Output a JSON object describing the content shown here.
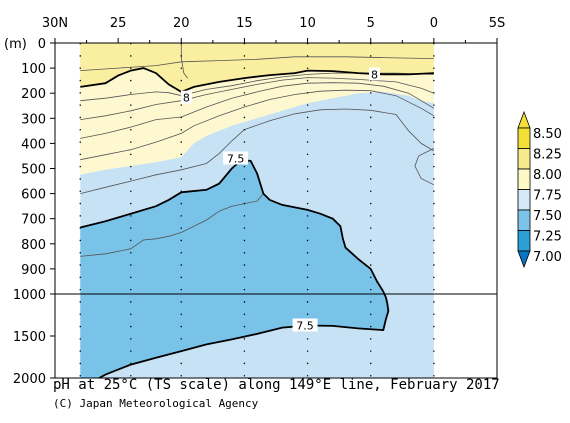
{
  "chart_data": {
    "type": "contour",
    "title": "pH at 25°C (TS scale) along 149°E line, February 2017",
    "credit": "(C) Japan Meteorological Agency",
    "xlabel": "",
    "ylabel": "(m)",
    "x_ticks": [
      "30N",
      "25",
      "20",
      "15",
      "10",
      "5",
      "0",
      "5S"
    ],
    "x_range": [
      30,
      -5
    ],
    "data_extent": [
      28,
      0
    ],
    "y_ticks_upper": [
      0,
      100,
      200,
      300,
      400,
      500,
      600,
      700,
      800,
      900,
      1000
    ],
    "y_ticks_lower": [
      1500,
      2000
    ],
    "y_range": [
      0,
      2000
    ],
    "y_break": 1000,
    "station_lats": [
      28,
      24,
      20,
      15,
      10,
      5,
      0
    ],
    "colorbar": {
      "levels": [
        "8.50",
        "8.25",
        "8.00",
        "7.75",
        "7.50",
        "7.25",
        "7.00"
      ],
      "fills": [
        "#f3df35",
        "#f6ea8a",
        "#fdf9c6",
        "#d3e9f7",
        "#7cc3e8",
        "#2c9fd4",
        "#0a74c4"
      ]
    },
    "colors": {
      "band_8_00_8_25": "#faeea0",
      "band_7_75_8_00": "#fdf8cf",
      "band_7_50_7_75": "#c7e2f5",
      "band_7_25_7_50": "#79c2e8"
    },
    "bold_contours": [
      "8",
      "7.5"
    ],
    "contour_labels": [
      {
        "text": "8",
        "lat": 19.6,
        "depth": 218
      },
      {
        "text": "8",
        "lat": 4.7,
        "depth": 125
      },
      {
        "text": "7.5",
        "lat": 15.7,
        "depth": 460
      },
      {
        "text": "7.5",
        "lat": 10.2,
        "depth": 1375
      }
    ],
    "regions": {
      "ph_8_00": [
        [
          28,
          175
        ],
        [
          26,
          160
        ],
        [
          25,
          130
        ],
        [
          24,
          110
        ],
        [
          23,
          100
        ],
        [
          22,
          120
        ],
        [
          21,
          165
        ],
        [
          20,
          195
        ],
        [
          19,
          175
        ],
        [
          17,
          155
        ],
        [
          15,
          140
        ],
        [
          13,
          128
        ],
        [
          11,
          120
        ],
        [
          10,
          110
        ],
        [
          8,
          112
        ],
        [
          6,
          120
        ],
        [
          4,
          125
        ],
        [
          2,
          125
        ],
        [
          0,
          120
        ],
        [
          0,
          0
        ],
        [
          28,
          0
        ]
      ],
      "ph_7_75": [
        [
          28,
          525
        ],
        [
          26,
          505
        ],
        [
          24,
          490
        ],
        [
          22,
          475
        ],
        [
          20,
          455
        ],
        [
          19,
          400
        ],
        [
          18,
          370
        ],
        [
          16,
          330
        ],
        [
          14,
          300
        ],
        [
          12,
          270
        ],
        [
          10,
          240
        ],
        [
          8,
          220
        ],
        [
          6,
          200
        ],
        [
          4,
          195
        ],
        [
          2,
          210
        ],
        [
          1,
          230
        ],
        [
          0,
          240
        ],
        [
          0,
          0
        ],
        [
          28,
          0
        ]
      ],
      "ph_7_50": [
        [
          28,
          735
        ],
        [
          26,
          710
        ],
        [
          24,
          680
        ],
        [
          22,
          650
        ],
        [
          21,
          625
        ],
        [
          20,
          595
        ],
        [
          18,
          585
        ],
        [
          17,
          560
        ],
        [
          16,
          500
        ],
        [
          15.2,
          465
        ],
        [
          14.5,
          470
        ],
        [
          14,
          520
        ],
        [
          13.5,
          600
        ],
        [
          13,
          625
        ],
        [
          12,
          645
        ],
        [
          10,
          665
        ],
        [
          9,
          680
        ],
        [
          8,
          700
        ],
        [
          7.4,
          730
        ],
        [
          7.2,
          780
        ],
        [
          7,
          815
        ],
        [
          6,
          860
        ],
        [
          5,
          900
        ],
        [
          4.5,
          950
        ],
        [
          4,
          990
        ],
        [
          3.8,
          1040
        ],
        [
          3.7,
          1100
        ],
        [
          3.6,
          1200
        ],
        [
          3.8,
          1300
        ],
        [
          4,
          1430
        ],
        [
          6,
          1410
        ],
        [
          8,
          1380
        ],
        [
          10,
          1375
        ],
        [
          12,
          1400
        ],
        [
          14,
          1475
        ],
        [
          16,
          1540
        ],
        [
          18,
          1600
        ],
        [
          20,
          1680
        ],
        [
          22,
          1760
        ],
        [
          24,
          1840
        ],
        [
          25,
          1900
        ],
        [
          26,
          1960
        ],
        [
          26.5,
          2000
        ],
        [
          28,
          2000
        ]
      ]
    },
    "thin_contours": [
      [
        [
          20,
          0
        ],
        [
          20,
          60
        ],
        [
          19.8,
          120
        ],
        [
          19.5,
          140
        ]
      ],
      [
        [
          28,
          110
        ],
        [
          25,
          100
        ],
        [
          22,
          90
        ],
        [
          20,
          75
        ],
        [
          17,
          70
        ],
        [
          14,
          65
        ],
        [
          11,
          55
        ],
        [
          7,
          55
        ],
        [
          4,
          58
        ],
        [
          0,
          62
        ]
      ],
      [
        [
          28,
          230
        ],
        [
          26,
          220
        ],
        [
          24,
          205
        ],
        [
          22,
          195
        ],
        [
          21,
          198
        ],
        [
          20,
          210
        ],
        [
          18,
          185
        ],
        [
          16,
          170
        ],
        [
          14,
          150
        ],
        [
          12,
          135
        ],
        [
          10,
          125
        ],
        [
          8,
          120
        ],
        [
          6,
          120
        ],
        [
          3,
          120
        ],
        [
          0,
          125
        ]
      ],
      [
        [
          28,
          305
        ],
        [
          26,
          290
        ],
        [
          24,
          270
        ],
        [
          22,
          245
        ],
        [
          20,
          230
        ],
        [
          18,
          205
        ],
        [
          16,
          185
        ],
        [
          14,
          165
        ],
        [
          12,
          148
        ],
        [
          10,
          138
        ],
        [
          8,
          140
        ],
        [
          6,
          145
        ],
        [
          3,
          155
        ],
        [
          1,
          180
        ],
        [
          0,
          200
        ]
      ],
      [
        [
          28,
          380
        ],
        [
          26,
          360
        ],
        [
          24,
          335
        ],
        [
          22,
          305
        ],
        [
          20,
          295
        ],
        [
          18,
          255
        ],
        [
          16,
          220
        ],
        [
          14,
          195
        ],
        [
          12,
          172
        ],
        [
          10,
          160
        ],
        [
          8,
          158
        ],
        [
          6,
          160
        ],
        [
          4,
          172
        ],
        [
          2,
          200
        ],
        [
          1,
          230
        ],
        [
          0,
          260
        ]
      ],
      [
        [
          28,
          465
        ],
        [
          26,
          445
        ],
        [
          24,
          425
        ],
        [
          22,
          395
        ],
        [
          20,
          360
        ],
        [
          19,
          330
        ],
        [
          17,
          290
        ],
        [
          15,
          255
        ],
        [
          13,
          225
        ],
        [
          11,
          205
        ],
        [
          9,
          192
        ],
        [
          7,
          188
        ],
        [
          5,
          190
        ],
        [
          3,
          210
        ],
        [
          1,
          260
        ],
        [
          0,
          290
        ]
      ],
      [
        [
          28,
          600
        ],
        [
          26,
          575
        ],
        [
          24,
          550
        ],
        [
          22,
          525
        ],
        [
          20,
          505
        ],
        [
          18,
          480
        ],
        [
          17,
          440
        ],
        [
          16,
          390
        ],
        [
          15,
          345
        ],
        [
          13,
          310
        ],
        [
          11,
          282
        ],
        [
          9,
          266
        ],
        [
          7,
          263
        ],
        [
          5,
          268
        ],
        [
          3,
          285
        ],
        [
          2,
          350
        ],
        [
          1,
          400
        ],
        [
          0,
          430
        ]
      ],
      [
        [
          0,
          420
        ],
        [
          1.2,
          450
        ],
        [
          1.5,
          490
        ],
        [
          1,
          540
        ],
        [
          0,
          565
        ]
      ],
      [
        [
          28,
          850
        ],
        [
          26,
          840
        ],
        [
          24,
          820
        ],
        [
          23,
          785
        ],
        [
          22,
          780
        ],
        [
          21,
          770
        ],
        [
          20,
          755
        ],
        [
          18,
          705
        ],
        [
          17,
          670
        ],
        [
          16,
          650
        ],
        [
          14,
          630
        ],
        [
          13.5,
          600
        ]
      ]
    ]
  }
}
